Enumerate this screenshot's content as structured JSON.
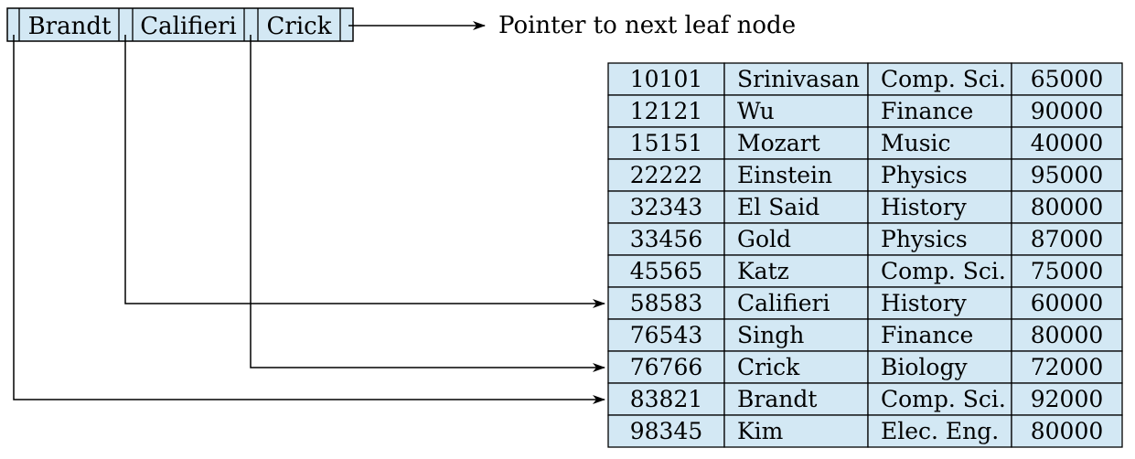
{
  "colors": {
    "cell_fill": "#d3e8f4",
    "line": "#000000",
    "background": "#ffffff"
  },
  "leaf_node": {
    "keys": [
      "Brandt",
      "Califieri",
      "Crick"
    ],
    "next_pointer_label": "Pointer to next leaf node"
  },
  "table": {
    "rows": [
      [
        "10101",
        "Srinivasan",
        "Comp. Sci.",
        "65000"
      ],
      [
        "12121",
        "Wu",
        "Finance",
        "90000"
      ],
      [
        "15151",
        "Mozart",
        "Music",
        "40000"
      ],
      [
        "22222",
        "Einstein",
        "Physics",
        "95000"
      ],
      [
        "32343",
        "El Said",
        "History",
        "80000"
      ],
      [
        "33456",
        "Gold",
        "Physics",
        "87000"
      ],
      [
        "45565",
        "Katz",
        "Comp. Sci.",
        "75000"
      ],
      [
        "58583",
        "Califieri",
        "History",
        "60000"
      ],
      [
        "76543",
        "Singh",
        "Finance",
        "80000"
      ],
      [
        "76766",
        "Crick",
        "Biology",
        "72000"
      ],
      [
        "83821",
        "Brandt",
        "Comp. Sci.",
        "92000"
      ],
      [
        "98345",
        "Kim",
        "Elec. Eng.",
        "80000"
      ]
    ]
  },
  "pointers": [
    {
      "from_key": "Brandt",
      "to_row": 10
    },
    {
      "from_key": "Califieri",
      "to_row": 7
    },
    {
      "from_key": "Crick",
      "to_row": 9
    }
  ]
}
